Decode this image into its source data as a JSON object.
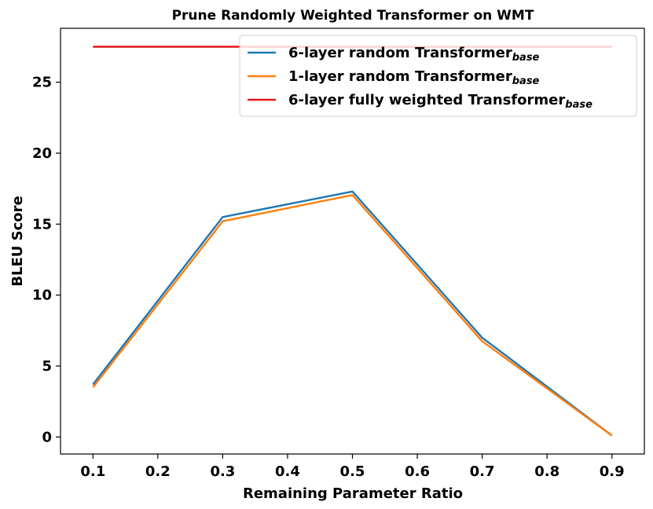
{
  "chart_data": {
    "type": "line",
    "title": "Prune Randomly Weighted Transformer on WMT",
    "xlabel": "Remaining Parameter Ratio",
    "ylabel": "BLEU Score",
    "xlim": [
      0.05,
      0.95
    ],
    "ylim": [
      -1.2,
      28.8
    ],
    "x_ticks": [
      0.1,
      0.2,
      0.3,
      0.4,
      0.5,
      0.6,
      0.7,
      0.8,
      0.9
    ],
    "x_tick_labels": [
      "0.1",
      "0.2",
      "0.3",
      "0.4",
      "0.5",
      "0.6",
      "0.7",
      "0.8",
      "0.9"
    ],
    "y_ticks": [
      0,
      5,
      10,
      15,
      20,
      25
    ],
    "y_tick_labels": [
      "0",
      "5",
      "10",
      "15",
      "20",
      "25"
    ],
    "grid": false,
    "legend_position": "top-right",
    "series": [
      {
        "name": "6-layer random Transformer",
        "name_subscript": "base",
        "color": "#1f77b4",
        "x": [
          0.1,
          0.3,
          0.5,
          0.7,
          0.9
        ],
        "values": [
          3.7,
          15.5,
          17.3,
          7.0,
          0.1
        ]
      },
      {
        "name": "1-layer random Transformer",
        "name_subscript": "base",
        "color": "#ff7f0e",
        "x": [
          0.1,
          0.3,
          0.5,
          0.7,
          0.9
        ],
        "values": [
          3.5,
          15.2,
          17.05,
          6.75,
          0.1
        ]
      },
      {
        "name": "6-layer fully weighted Transformer",
        "name_subscript": "base",
        "color": "#e4141b",
        "x": [
          0.1,
          0.9
        ],
        "values": [
          27.5,
          27.5
        ]
      }
    ]
  }
}
